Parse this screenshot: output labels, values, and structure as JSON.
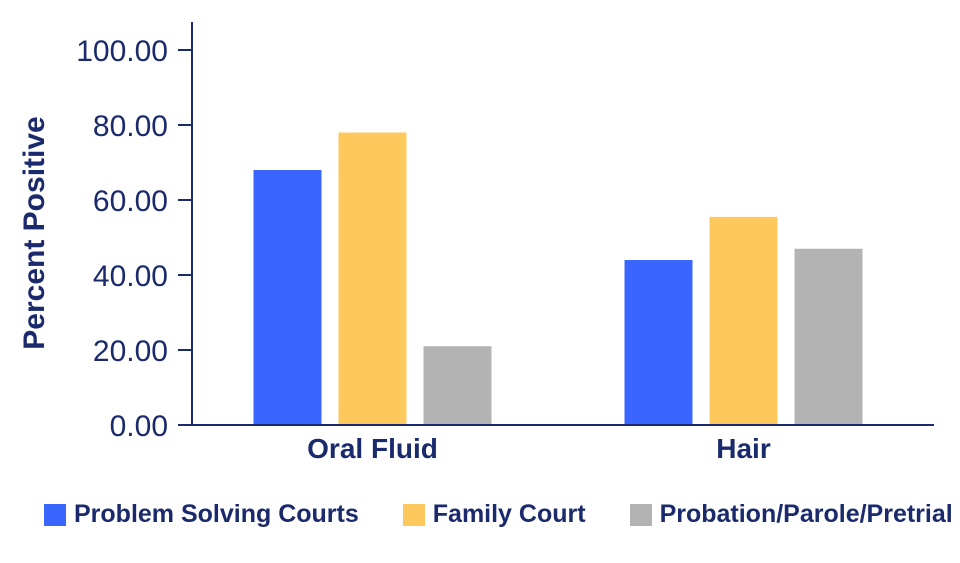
{
  "chart_data": {
    "type": "bar",
    "categories": [
      "Oral Fluid",
      "Hair"
    ],
    "series": [
      {
        "name": "Problem Solving Courts",
        "color": "#3a66ff",
        "values": [
          68.0,
          44.0
        ]
      },
      {
        "name": "Family Court",
        "color": "#fdc95c",
        "values": [
          78.0,
          55.5
        ]
      },
      {
        "name": "Probation/Parole/Pretrial",
        "color": "#b3b3b3",
        "values": [
          21.0,
          47.0
        ]
      }
    ],
    "ylabel": "Percent Positive",
    "ylim": [
      0,
      100
    ],
    "yticks": [
      "0.00",
      "20.00",
      "40.00",
      "60.00",
      "80.00",
      "100.00"
    ],
    "axis_color": "#1a2a6c",
    "grid": false,
    "legend_position": "bottom"
  }
}
